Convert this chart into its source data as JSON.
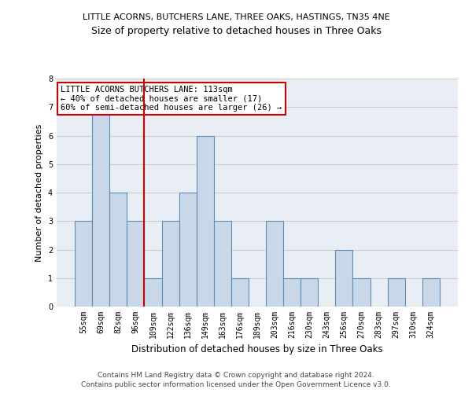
{
  "title1": "LITTLE ACORNS, BUTCHERS LANE, THREE OAKS, HASTINGS, TN35 4NE",
  "title2": "Size of property relative to detached houses in Three Oaks",
  "xlabel": "Distribution of detached houses by size in Three Oaks",
  "ylabel": "Number of detached properties",
  "categories": [
    "55sqm",
    "69sqm",
    "82sqm",
    "96sqm",
    "109sqm",
    "122sqm",
    "136sqm",
    "149sqm",
    "163sqm",
    "176sqm",
    "189sqm",
    "203sqm",
    "216sqm",
    "230sqm",
    "243sqm",
    "256sqm",
    "270sqm",
    "283sqm",
    "297sqm",
    "310sqm",
    "324sqm"
  ],
  "values": [
    3,
    7,
    4,
    3,
    1,
    3,
    4,
    6,
    3,
    1,
    0,
    3,
    1,
    1,
    0,
    2,
    1,
    0,
    1,
    0,
    1
  ],
  "bar_color": "#c8d8e8",
  "bar_edge_color": "#5b8db8",
  "property_line_index": 4,
  "property_line_color": "#cc0000",
  "annotation_text": "LITTLE ACORNS BUTCHERS LANE: 113sqm\n← 40% of detached houses are smaller (17)\n60% of semi-detached houses are larger (26) →",
  "annotation_box_color": "#ffffff",
  "annotation_box_edge_color": "#cc0000",
  "footer1": "Contains HM Land Registry data © Crown copyright and database right 2024.",
  "footer2": "Contains public sector information licensed under the Open Government Licence v3.0.",
  "ylim": [
    0,
    8
  ],
  "yticks": [
    0,
    1,
    2,
    3,
    4,
    5,
    6,
    7,
    8
  ],
  "grid_color": "#cccccc",
  "bg_color": "#e8eef4",
  "title1_fontsize": 8.0,
  "title2_fontsize": 9.0,
  "xlabel_fontsize": 8.5,
  "ylabel_fontsize": 8.0,
  "tick_fontsize": 7.0,
  "footer_fontsize": 6.5,
  "annotation_fontsize": 7.5
}
